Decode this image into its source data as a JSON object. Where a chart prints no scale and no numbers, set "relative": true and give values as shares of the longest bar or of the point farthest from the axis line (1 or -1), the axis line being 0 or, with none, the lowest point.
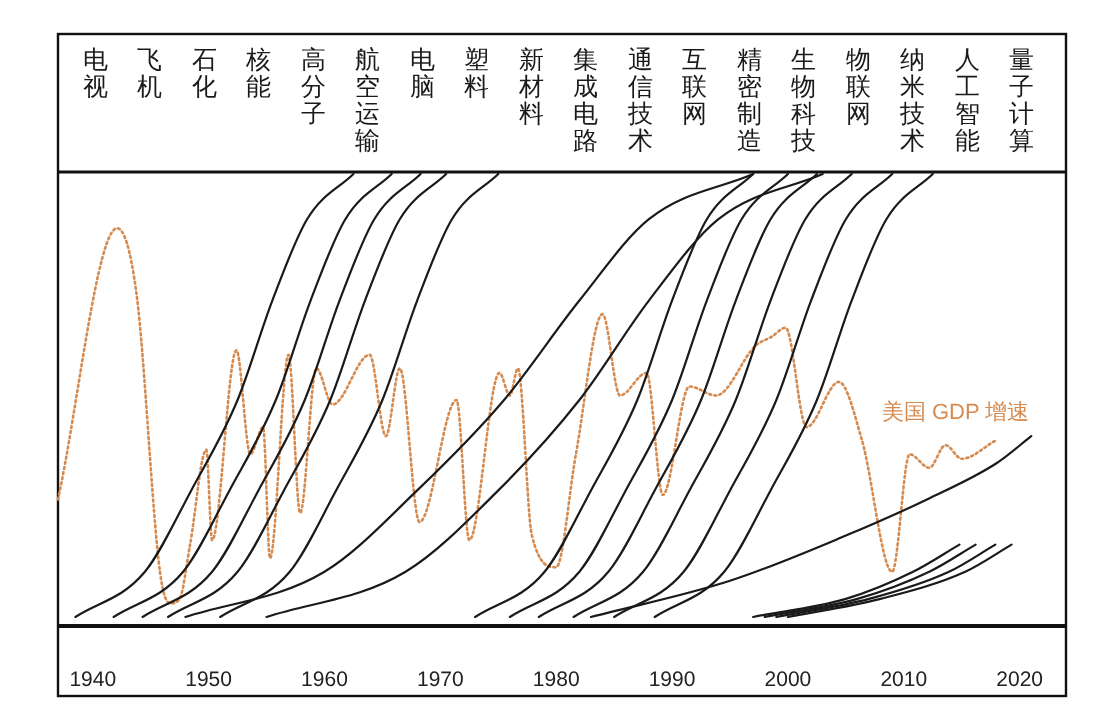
{
  "chart_data": {
    "type": "line",
    "relative": true,
    "xlim": [
      1937,
      2024
    ],
    "xticks": [
      1940,
      1950,
      1960,
      1970,
      1980,
      1990,
      2000,
      2010,
      2020
    ],
    "grid": false,
    "annotations": [
      "电视",
      "飞机",
      "石化",
      "核能",
      "高分子",
      "航空运输",
      "电脑",
      "塑料",
      "新材料",
      "集成电路",
      "通信技术",
      "互联网",
      "精密制造",
      "生物科技",
      "物联网",
      "纳米技术",
      "人工智能",
      "量子计算"
    ],
    "series": [
      {
        "name": "美国 GDP 增速",
        "color": "#d58a4f",
        "line_style": "dotted",
        "x": [
          1937,
          1942.1,
          1943.8,
          1945.8,
          1946.7,
          1947.5,
          1948.4,
          1949.8,
          1950.3,
          1952.4,
          1953.6,
          1954.7,
          1955.3,
          1956.9,
          1957.9,
          1959.3,
          1960.7,
          1963.9,
          1965.3,
          1966.5,
          1968.2,
          1971.4,
          1972.5,
          1975.1,
          1976,
          1976.7,
          1977.9,
          1980,
          1981.7,
          1984,
          1985.5,
          1987.8,
          1989.2,
          1991.5,
          1993.8,
          1997.2,
          1998.6,
          1999.8,
          2001.6,
          2004.4,
          2006.4,
          2009,
          2010.5,
          2012.2,
          2013.6,
          2015,
          2017.9
        ],
        "values": [
          0.28,
          0.88,
          0.73,
          0.12,
          0.05,
          0.06,
          0.18,
          0.39,
          0.19,
          0.61,
          0.38,
          0.44,
          0.15,
          0.6,
          0.25,
          0.57,
          0.49,
          0.6,
          0.42,
          0.57,
          0.23,
          0.5,
          0.19,
          0.56,
          0.51,
          0.57,
          0.2,
          0.13,
          0.38,
          0.69,
          0.51,
          0.56,
          0.29,
          0.53,
          0.51,
          0.62,
          0.64,
          0.66,
          0.44,
          0.54,
          0.41,
          0.12,
          0.38,
          0.35,
          0.4,
          0.37,
          0.41
        ]
      },
      {
        "color": "#1a1a1a",
        "line_style": "solid",
        "x": [
          1938.5,
          1944.5,
          1948.5,
          1952.5,
          1955.5,
          1958.5,
          1962.5
        ],
        "values": [
          0.02,
          0.12,
          0.3,
          0.5,
          0.72,
          0.9,
          1
        ]
      },
      {
        "color": "#1a1a1a",
        "line_style": "solid",
        "x": [
          1941.8,
          1947.8,
          1951.8,
          1955.8,
          1958.8,
          1961.8,
          1965.8
        ],
        "values": [
          0.02,
          0.12,
          0.3,
          0.5,
          0.72,
          0.9,
          1
        ]
      },
      {
        "color": "#1a1a1a",
        "line_style": "solid",
        "x": [
          1944.3,
          1950.3,
          1954.3,
          1958.3,
          1961.3,
          1964.3,
          1968.3
        ],
        "values": [
          0.02,
          0.12,
          0.3,
          0.5,
          0.72,
          0.9,
          1
        ]
      },
      {
        "color": "#1a1a1a",
        "line_style": "solid",
        "x": [
          1946.5,
          1952.5,
          1956.5,
          1960.5,
          1963.5,
          1966.5,
          1970.5
        ],
        "values": [
          0.02,
          0.12,
          0.3,
          0.5,
          0.72,
          0.9,
          1
        ]
      },
      {
        "color": "#1a1a1a",
        "line_style": "solid",
        "x": [
          1951,
          1957,
          1961,
          1965,
          1968,
          1971,
          1975
        ],
        "values": [
          0.02,
          0.12,
          0.3,
          0.5,
          0.72,
          0.9,
          1
        ]
      },
      {
        "color": "#1a1a1a",
        "line_style": "solid",
        "x": [
          1948,
          1960,
          1968,
          1975.5,
          1982,
          1988,
          1997
        ],
        "values": [
          0.02,
          0.12,
          0.3,
          0.5,
          0.72,
          0.9,
          1
        ]
      },
      {
        "color": "#1a1a1a",
        "line_style": "solid",
        "x": [
          1955,
          1967,
          1975,
          1982,
          1988,
          1994,
          2003
        ],
        "values": [
          0.02,
          0.12,
          0.3,
          0.5,
          0.72,
          0.9,
          1
        ]
      },
      {
        "color": "#1a1a1a",
        "line_style": "solid",
        "x": [
          1973,
          1979,
          1983,
          1987,
          1990,
          1993,
          1997
        ],
        "values": [
          0.02,
          0.12,
          0.3,
          0.5,
          0.72,
          0.9,
          1
        ]
      },
      {
        "color": "#1a1a1a",
        "line_style": "solid",
        "x": [
          1976,
          1982,
          1986,
          1990,
          1993,
          1996,
          2000
        ],
        "values": [
          0.02,
          0.12,
          0.3,
          0.5,
          0.72,
          0.9,
          1
        ]
      },
      {
        "color": "#1a1a1a",
        "line_style": "solid",
        "x": [
          1978.5,
          1984.5,
          1988.5,
          1992.5,
          1995.5,
          1998.5,
          2002.5
        ],
        "values": [
          0.02,
          0.12,
          0.3,
          0.5,
          0.72,
          0.9,
          1
        ]
      },
      {
        "color": "#1a1a1a",
        "line_style": "solid",
        "x": [
          1981.5,
          1987.5,
          1991.5,
          1995.5,
          1998.5,
          2001.5,
          2005.5
        ],
        "values": [
          0.02,
          0.12,
          0.3,
          0.5,
          0.72,
          0.9,
          1
        ]
      },
      {
        "color": "#1a1a1a",
        "line_style": "solid",
        "x": [
          1985,
          1991,
          1995,
          1999,
          2002,
          2005,
          2009
        ],
        "values": [
          0.02,
          0.12,
          0.3,
          0.5,
          0.72,
          0.9,
          1
        ]
      },
      {
        "color": "#1a1a1a",
        "line_style": "solid",
        "x": [
          1988.5,
          1994.5,
          1998.5,
          2002.5,
          2005.5,
          2008.5,
          2012.5
        ],
        "values": [
          0.02,
          0.12,
          0.3,
          0.5,
          0.72,
          0.9,
          1
        ]
      },
      {
        "color": "#1a1a1a",
        "line_style": "solid",
        "x": [
          1983,
          1995,
          2005,
          2012,
          2018,
          2021
        ],
        "values": [
          0.02,
          0.1,
          0.2,
          0.28,
          0.36,
          0.42
        ]
      },
      {
        "color": "#1a1a1a",
        "line_style": "solid",
        "x": [
          1997,
          2005,
          2010.8,
          2014.8
        ],
        "values": [
          0.02,
          0.06,
          0.12,
          0.18
        ]
      },
      {
        "color": "#1a1a1a",
        "line_style": "solid",
        "x": [
          1998,
          2006,
          2012.2,
          2016.2
        ],
        "values": [
          0.02,
          0.06,
          0.12,
          0.18
        ]
      },
      {
        "color": "#1a1a1a",
        "line_style": "solid",
        "x": [
          1999,
          2007,
          2013.9,
          2017.9
        ],
        "values": [
          0.02,
          0.06,
          0.12,
          0.18
        ]
      },
      {
        "color": "#1a1a1a",
        "line_style": "solid",
        "x": [
          2000,
          2008,
          2015.3,
          2019.3
        ],
        "values": [
          0.02,
          0.06,
          0.12,
          0.18
        ]
      }
    ]
  }
}
